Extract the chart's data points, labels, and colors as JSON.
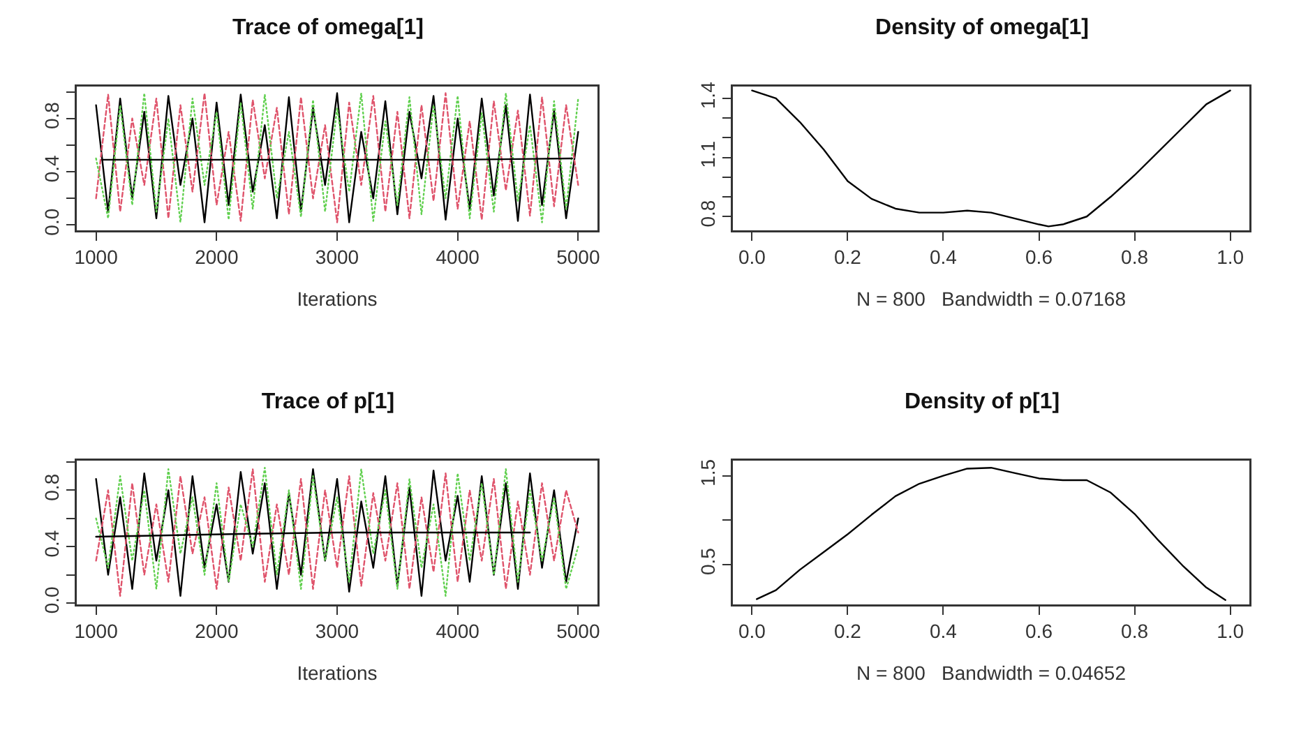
{
  "chart_data": [
    {
      "type": "line",
      "title": "Trace of omega[1]",
      "xlabel": "Iterations",
      "xlim": [
        840,
        5160
      ],
      "xticks": [
        1000,
        2000,
        3000,
        4000,
        5000
      ],
      "ylim": [
        -0.04,
        1.04
      ],
      "yticks": [
        {
          "value": 0,
          "label": "0.0"
        },
        {
          "value": 0.2,
          "label": null
        },
        {
          "value": 0.4,
          "label": "0.4"
        },
        {
          "value": 0.6,
          "label": null
        },
        {
          "value": 0.8,
          "label": "0.8"
        },
        {
          "value": 1,
          "label": null
        }
      ],
      "x": [
        1000,
        1100,
        1200,
        1300,
        1400,
        1500,
        1600,
        1700,
        1800,
        1900,
        2000,
        2100,
        2200,
        2300,
        2400,
        2500,
        2600,
        2700,
        2800,
        2900,
        3000,
        3100,
        3200,
        3300,
        3400,
        3500,
        3600,
        3700,
        3800,
        3900,
        4000,
        4100,
        4200,
        4300,
        4400,
        4500,
        4600,
        4700,
        4800,
        4900,
        5000
      ],
      "series": [
        {
          "color": "#000000",
          "line_style": "solid",
          "values": [
            0.9,
            0.1,
            0.95,
            0.2,
            0.85,
            0.05,
            0.97,
            0.3,
            0.8,
            0.02,
            0.92,
            0.15,
            0.98,
            0.25,
            0.75,
            0.05,
            0.96,
            0.1,
            0.88,
            0.3,
            0.99,
            0.02,
            0.7,
            0.2,
            0.93,
            0.08,
            0.85,
            0.35,
            0.97,
            0.04,
            0.8,
            0.12,
            0.95,
            0.22,
            0.9,
            0.03,
            0.98,
            0.15,
            0.86,
            0.05,
            0.7
          ]
        },
        {
          "color": "#df536b",
          "line_style": "dashed",
          "values": [
            0.2,
            0.98,
            0.1,
            0.8,
            0.3,
            0.95,
            0.05,
            0.9,
            0.25,
            0.99,
            0.15,
            0.7,
            0.03,
            0.94,
            0.35,
            0.88,
            0.08,
            0.96,
            0.2,
            0.75,
            0.02,
            0.92,
            0.3,
            0.97,
            0.1,
            0.85,
            0.05,
            0.9,
            0.18,
            0.99,
            0.12,
            0.78,
            0.04,
            0.93,
            0.26,
            0.86,
            0.07,
            0.96,
            0.14,
            0.9,
            0.3
          ]
        },
        {
          "color": "#61d04f",
          "line_style": "dotted",
          "values": [
            0.5,
            0.05,
            0.9,
            0.15,
            0.99,
            0.1,
            0.8,
            0.02,
            0.95,
            0.3,
            0.85,
            0.04,
            0.92,
            0.12,
            0.98,
            0.2,
            0.7,
            0.06,
            0.94,
            0.1,
            0.88,
            0.25,
            0.99,
            0.03,
            0.78,
            0.15,
            0.96,
            0.08,
            0.9,
            0.2,
            0.97,
            0.05,
            0.84,
            0.1,
            0.99,
            0.18,
            0.75,
            0.02,
            0.93,
            0.12,
            0.95
          ]
        },
        {
          "color": "#000000",
          "line_style": "solid",
          "x": [
            1050,
            2000,
            3000,
            4000,
            4950
          ],
          "values": [
            0.49,
            0.49,
            0.49,
            0.49,
            0.5
          ]
        }
      ]
    },
    {
      "type": "line",
      "title": "Density of omega[1]",
      "xlabel": "N = 800   Bandwidth = 0.07168",
      "xlim": [
        -0.04,
        1.04
      ],
      "xticks": [
        {
          "value": 0,
          "label": "0.0"
        },
        {
          "value": 0.2,
          "label": "0.2"
        },
        {
          "value": 0.4,
          "label": "0.4"
        },
        {
          "value": 0.6,
          "label": "0.6"
        },
        {
          "value": 0.8,
          "label": "0.8"
        },
        {
          "value": 1,
          "label": "1.0"
        }
      ],
      "ylim": [
        0.73,
        1.46
      ],
      "yticks": [
        0.8,
        {
          "value": 0.9,
          "label": null
        },
        {
          "value": 1,
          "label": null
        },
        1.1,
        {
          "value": 1.2,
          "label": null
        },
        {
          "value": 1.3,
          "label": null
        },
        1.4
      ],
      "x": [
        0,
        0.05,
        0.1,
        0.15,
        0.2,
        0.25,
        0.3,
        0.35,
        0.4,
        0.45,
        0.5,
        0.55,
        0.6,
        0.62,
        0.65,
        0.7,
        0.75,
        0.8,
        0.85,
        0.9,
        0.95,
        1
      ],
      "series": [
        {
          "color": "#000000",
          "line_style": "solid",
          "values": [
            1.44,
            1.4,
            1.28,
            1.14,
            0.98,
            0.89,
            0.84,
            0.82,
            0.82,
            0.83,
            0.82,
            0.79,
            0.76,
            0.75,
            0.76,
            0.8,
            0.9,
            1.01,
            1.13,
            1.25,
            1.37,
            1.44
          ]
        }
      ]
    },
    {
      "type": "line",
      "title": "Trace of p[1]",
      "xlabel": "Iterations",
      "xlim": [
        840,
        5160
      ],
      "xticks": [
        1000,
        2000,
        3000,
        4000,
        5000
      ],
      "ylim": [
        -0.01,
        1.01
      ],
      "yticks": [
        {
          "value": 0,
          "label": "0.0"
        },
        {
          "value": 0.2,
          "label": null
        },
        {
          "value": 0.4,
          "label": "0.4"
        },
        {
          "value": 0.6,
          "label": null
        },
        {
          "value": 0.8,
          "label": "0.8"
        },
        {
          "value": 1,
          "label": null
        }
      ],
      "x": [
        1000,
        1100,
        1200,
        1300,
        1400,
        1500,
        1600,
        1700,
        1800,
        1900,
        2000,
        2100,
        2200,
        2300,
        2400,
        2500,
        2600,
        2700,
        2800,
        2900,
        3000,
        3100,
        3200,
        3300,
        3400,
        3500,
        3600,
        3700,
        3800,
        3900,
        4000,
        4100,
        4200,
        4300,
        4400,
        4500,
        4600,
        4700,
        4800,
        4900,
        5000
      ],
      "series": [
        {
          "color": "#000000",
          "line_style": "solid",
          "values": [
            0.88,
            0.2,
            0.75,
            0.1,
            0.92,
            0.3,
            0.8,
            0.05,
            0.9,
            0.25,
            0.7,
            0.15,
            0.93,
            0.35,
            0.85,
            0.1,
            0.78,
            0.2,
            0.95,
            0.3,
            0.88,
            0.08,
            0.72,
            0.25,
            0.9,
            0.12,
            0.82,
            0.05,
            0.94,
            0.3,
            0.76,
            0.15,
            0.9,
            0.2,
            0.85,
            0.1,
            0.92,
            0.25,
            0.8,
            0.15,
            0.6
          ]
        },
        {
          "color": "#df536b",
          "line_style": "dashed",
          "values": [
            0.3,
            0.8,
            0.05,
            0.85,
            0.2,
            0.7,
            0.15,
            0.9,
            0.35,
            0.75,
            0.1,
            0.82,
            0.3,
            0.95,
            0.15,
            0.7,
            0.2,
            0.88,
            0.1,
            0.8,
            0.25,
            0.9,
            0.12,
            0.78,
            0.3,
            0.85,
            0.1,
            0.75,
            0.22,
            0.92,
            0.15,
            0.8,
            0.3,
            0.88,
            0.1,
            0.72,
            0.2,
            0.85,
            0.3,
            0.8,
            0.5
          ]
        },
        {
          "color": "#61d04f",
          "line_style": "dotted",
          "values": [
            0.6,
            0.25,
            0.9,
            0.3,
            0.8,
            0.1,
            0.95,
            0.35,
            0.75,
            0.2,
            0.85,
            0.15,
            0.7,
            0.4,
            0.96,
            0.2,
            0.8,
            0.1,
            0.9,
            0.3,
            0.75,
            0.15,
            0.95,
            0.35,
            0.8,
            0.1,
            0.88,
            0.25,
            0.7,
            0.05,
            0.92,
            0.3,
            0.85,
            0.2,
            0.95,
            0.15,
            0.8,
            0.3,
            0.75,
            0.1,
            0.4
          ]
        },
        {
          "color": "#000000",
          "line_style": "solid",
          "x": [
            1000,
            2200,
            3000,
            4000,
            4600
          ],
          "values": [
            0.47,
            0.49,
            0.5,
            0.5,
            0.5
          ]
        }
      ]
    },
    {
      "type": "line",
      "title": "Density of p[1]",
      "xlabel": "N = 800   Bandwidth = 0.04652",
      "xlim": [
        -0.04,
        1.04
      ],
      "xticks": [
        {
          "value": 0,
          "label": "0.0"
        },
        {
          "value": 0.2,
          "label": "0.2"
        },
        {
          "value": 0.4,
          "label": "0.4"
        },
        {
          "value": 0.6,
          "label": "0.6"
        },
        {
          "value": 0.8,
          "label": "0.8"
        },
        {
          "value": 1,
          "label": "1.0"
        }
      ],
      "ylim": [
        0.05,
        1.67
      ],
      "yticks": [
        0.5,
        {
          "value": 1,
          "label": null
        },
        1.5
      ],
      "x": [
        0.01,
        0.05,
        0.1,
        0.15,
        0.2,
        0.25,
        0.3,
        0.35,
        0.4,
        0.45,
        0.5,
        0.55,
        0.6,
        0.65,
        0.7,
        0.75,
        0.8,
        0.85,
        0.9,
        0.95,
        0.99
      ],
      "series": [
        {
          "color": "#000000",
          "line_style": "solid",
          "values": [
            0.11,
            0.21,
            0.44,
            0.64,
            0.84,
            1.06,
            1.27,
            1.41,
            1.5,
            1.58,
            1.59,
            1.53,
            1.47,
            1.45,
            1.45,
            1.31,
            1.07,
            0.77,
            0.49,
            0.24,
            0.1
          ]
        }
      ]
    }
  ]
}
